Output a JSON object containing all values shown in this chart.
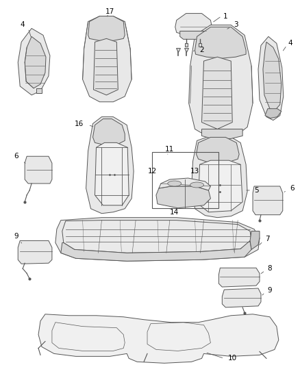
{
  "bg_color": "#ffffff",
  "fig_width": 4.38,
  "fig_height": 5.33,
  "dpi": 100,
  "line_color": "#555555",
  "fill_light": "#e8e8e8",
  "fill_mid": "#d8d8d8",
  "fill_dark": "#c8c8c8",
  "label_fontsize": 7.5
}
